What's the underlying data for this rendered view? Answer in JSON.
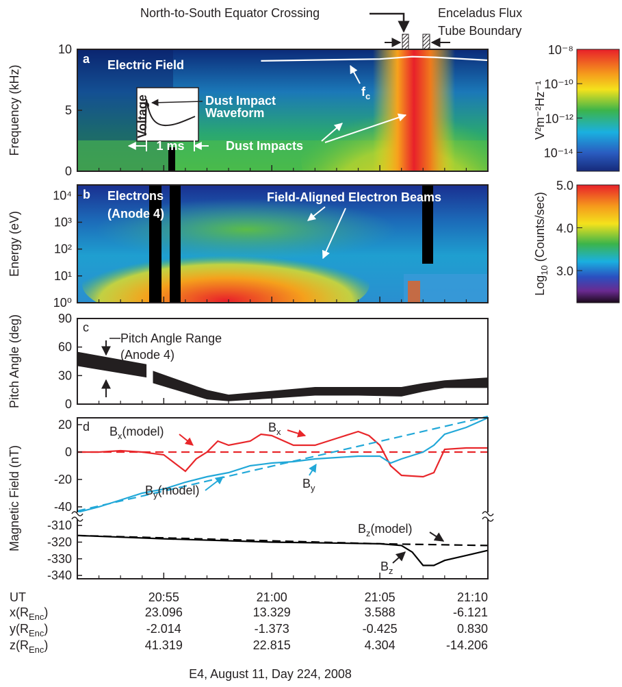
{
  "figure": {
    "top_labels": {
      "equator": "North-to-South Equator Crossing",
      "flux_tube": [
        "Enceladus Flux",
        "Tube Boundary"
      ]
    },
    "footer": "E4, August 11, Day 224, 2008"
  },
  "chart_data": [
    {
      "type": "heatmap",
      "panel_label": "a",
      "title": "Electric Field",
      "ylabel": "Frequency (kHz)",
      "ylim": [
        0,
        10
      ],
      "yticks": [
        0,
        5,
        10
      ],
      "series": [
        {
          "name": [
            "f",
            "c"
          ],
          "color": "#ffffff",
          "x": [
            59.5,
            63,
            65,
            66.5,
            67.5,
            70
          ],
          "values": [
            9.05,
            9.15,
            9.2,
            9.4,
            9.35,
            9.1
          ]
        }
      ],
      "annotations": {
        "inset_ylabel": "Voltage",
        "inset_scale": "1 ms",
        "waveform": [
          "Dust Impact",
          "Waveform"
        ],
        "impacts": "Dust Impacts"
      },
      "colorbar": {
        "label": "V²m⁻²Hz⁻¹",
        "clim": [
          -15.1,
          -8
        ],
        "ticks": [
          {
            "value": -8,
            "label": "10⁻⁸"
          },
          {
            "value": -10,
            "label": "10⁻¹⁰"
          },
          {
            "value": -12,
            "label": "10⁻¹²"
          },
          {
            "value": -14,
            "label": "10⁻¹⁴"
          }
        ]
      }
    },
    {
      "type": "heatmap",
      "panel_label": "b",
      "title": [
        "Electrons",
        "(Anode 4)"
      ],
      "ylabel": "Energy (eV)",
      "yscale": "log",
      "ylim": [
        1,
        24500
      ],
      "yticks": [
        {
          "value": 1,
          "label": "10⁰"
        },
        {
          "value": 10,
          "label": "10¹"
        },
        {
          "value": 100,
          "label": "10²"
        },
        {
          "value": 1000,
          "label": "10³"
        },
        {
          "value": 10000,
          "label": "10⁴"
        }
      ],
      "series": [],
      "annotations": {
        "beams": "Field-Aligned Electron Beams"
      },
      "colorbar": {
        "label": [
          "Log",
          "10",
          " (Counts/sec)"
        ],
        "clim": [
          2.25,
          5
        ],
        "ticks": [
          {
            "value": 5,
            "label": "5.0"
          },
          {
            "value": 4,
            "label": "4.0"
          },
          {
            "value": 3,
            "label": "3.0"
          }
        ]
      }
    },
    {
      "type": "band",
      "panel_label": "c",
      "ylabel": "Pitch Angle (deg)",
      "ylim": [
        0,
        90
      ],
      "yticks": [
        0,
        30,
        60,
        90
      ],
      "color": "#231f20",
      "x": [
        51,
        54.2,
        null,
        54.5,
        57,
        58,
        60,
        62,
        64,
        66,
        67,
        68,
        70
      ],
      "lower": [
        40,
        28,
        null,
        22,
        5,
        3,
        6,
        9,
        9,
        8,
        13,
        17,
        17
      ],
      "upper": [
        55,
        42,
        null,
        35,
        15,
        10,
        14,
        18,
        18,
        18,
        22,
        25,
        28
      ],
      "annotations": {
        "range": [
          "Pitch Angle Range",
          "(Anode 4)"
        ]
      }
    },
    {
      "type": "line",
      "panel_label": "d",
      "ylabel": "Magnetic Field (nT)",
      "ylim": [
        -46,
        25
      ],
      "yticks": [
        -40,
        -20,
        0,
        20
      ],
      "y2lim": [
        -342,
        -305
      ],
      "y2ticks": [
        -340,
        -330,
        -320,
        -310
      ],
      "series": [
        {
          "name": [
            "B",
            "x",
            "(model)"
          ],
          "color": "#e8262a",
          "dashed": true,
          "x": [
            51,
            70
          ],
          "values": [
            0,
            0
          ]
        },
        {
          "name": [
            "B",
            "x"
          ],
          "color": "#e8262a",
          "x": [
            51,
            52,
            53,
            54,
            55,
            55.5,
            56,
            56.5,
            57,
            57.5,
            58,
            59,
            59.5,
            60,
            61,
            62,
            63,
            64,
            64.5,
            65,
            65.5,
            66,
            67,
            67.5,
            68,
            69,
            70
          ],
          "values": [
            0,
            0,
            1,
            0,
            -2,
            -8,
            -14,
            -5,
            0,
            8,
            5,
            8,
            13,
            12,
            5,
            5,
            10,
            15,
            12,
            5,
            -10,
            -17,
            -18,
            -15,
            2,
            3,
            3
          ]
        },
        {
          "name": [
            "B",
            "y",
            "(model)"
          ],
          "color": "#22a8d8",
          "dashed": true,
          "x": [
            51,
            70
          ],
          "values": [
            -43,
            26
          ]
        },
        {
          "name": [
            "B",
            "y"
          ],
          "color": "#22a8d8",
          "x": [
            51,
            52,
            53,
            54,
            55,
            56,
            57,
            58,
            59,
            60,
            61,
            62,
            63,
            64,
            65,
            65.5,
            66,
            67,
            67.5,
            68,
            69,
            70
          ],
          "values": [
            -44,
            -40,
            -35,
            -30,
            -27,
            -22,
            -18,
            -15,
            -10,
            -8,
            -7,
            -5,
            -4,
            -3,
            -3,
            -8,
            -5,
            0,
            5,
            13,
            18,
            25
          ]
        },
        {
          "name": [
            "B",
            "z",
            "(model)"
          ],
          "color": "#000000",
          "dashed": true,
          "axis": "y2",
          "x": [
            51,
            65,
            70
          ],
          "values": [
            -316,
            -321,
            -322
          ]
        },
        {
          "name": [
            "B",
            "z"
          ],
          "color": "#000000",
          "axis": "y2",
          "x": [
            51,
            55,
            60,
            65,
            66,
            66.5,
            67,
            67.5,
            68,
            69,
            70
          ],
          "values": [
            -316,
            -318,
            -320,
            -321,
            -322,
            -326,
            -334,
            -334,
            -331,
            -328,
            -325
          ]
        }
      ],
      "xlabel": "UT",
      "xlim": [
        51,
        70
      ],
      "xticks": [
        {
          "value": 55,
          "label": "20:55"
        },
        {
          "value": 60,
          "label": "21:00"
        },
        {
          "value": 65,
          "label": "21:05"
        },
        {
          "value": 70,
          "label": "21:10"
        }
      ],
      "xminorticks": [
        52,
        53,
        54,
        56,
        57,
        58,
        59,
        61,
        62,
        63,
        64,
        66,
        67,
        68,
        69
      ],
      "ephemeris": [
        {
          "label": [
            "x(R",
            "Enc",
            ")"
          ],
          "values": [
            "23.096",
            "13.329",
            "3.588",
            "-6.121"
          ]
        },
        {
          "label": [
            "y(R",
            "Enc",
            ")"
          ],
          "values": [
            "-2.014",
            "-1.373",
            "-0.425",
            "0.830"
          ]
        },
        {
          "label": [
            "z(R",
            "Enc",
            ")"
          ],
          "values": [
            "41.319",
            "22.815",
            "4.304",
            "-14.206"
          ]
        }
      ]
    }
  ]
}
